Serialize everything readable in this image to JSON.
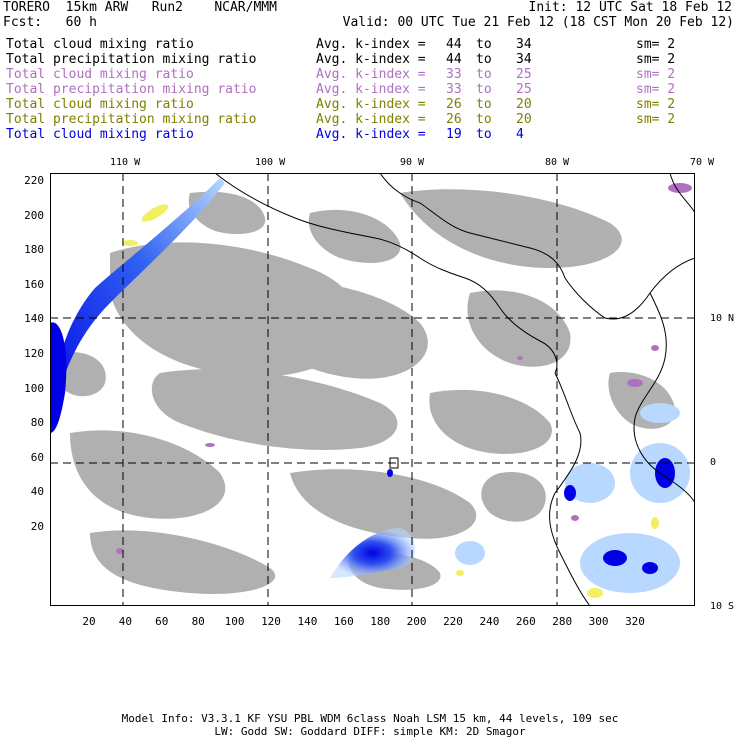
{
  "header": {
    "model": "TORERO  15km ARW   Run2    NCAR/MMM",
    "init": "Init: 12 UTC Sat 18 Feb 12",
    "fcst": "Fcst:   60 h",
    "valid": "Valid: 00 UTC Tue 21 Feb 12 (18 CST Mon 20 Feb 12)"
  },
  "legend": [
    {
      "field": "Total cloud mixing ratio",
      "index": "Avg. k-index =",
      "from": "44",
      "to_word": "to",
      "to": "34",
      "sm": "sm= 2",
      "color": "#000000"
    },
    {
      "field": "Total precipitation mixing ratio",
      "index": "Avg. k-index =",
      "from": "44",
      "to_word": "to",
      "to": "34",
      "sm": "sm= 2",
      "color": "#000000"
    },
    {
      "field": "Total cloud mixing ratio",
      "index": "Avg. k-index =",
      "from": "33",
      "to_word": "to",
      "to": "25",
      "sm": "sm= 2",
      "color": "#b070c0"
    },
    {
      "field": "Total precipitation mixing ratio",
      "index": "Avg. k-index =",
      "from": "33",
      "to_word": "to",
      "to": "25",
      "sm": "sm= 2",
      "color": "#b070c0"
    },
    {
      "field": "Total cloud mixing ratio",
      "index": "Avg. k-index =",
      "from": "26",
      "to_word": "to",
      "to": "20",
      "sm": "sm= 2",
      "color": "#808000"
    },
    {
      "field": "Total precipitation mixing ratio",
      "index": "Avg. k-index =",
      "from": "26",
      "to_word": "to",
      "to": "20",
      "sm": "sm= 2",
      "color": "#808000"
    },
    {
      "field": "Total cloud mixing ratio",
      "index": "Avg. k-index =",
      "from": "19",
      "to_word": "to",
      "to": "4",
      "sm": "",
      "color": "#0000e0"
    }
  ],
  "axes": {
    "lon_labels": [
      "110 W",
      "100 W",
      "90 W",
      "80 W",
      "70 W"
    ],
    "lat_labels": [
      "10 N",
      "0",
      "10 S"
    ],
    "y_ticks": [
      "220",
      "200",
      "180",
      "160",
      "140",
      "120",
      "100",
      "80",
      "60",
      "40",
      "20"
    ],
    "x_ticks": [
      "20",
      "40",
      "60",
      "80",
      "100",
      "120",
      "140",
      "160",
      "180",
      "200",
      "220",
      "240",
      "260",
      "280",
      "300",
      "320"
    ]
  },
  "colors": {
    "cloud_gray": "#a8a8a8",
    "deep_blue": "#0000e6",
    "light_blue": "#b8d8ff",
    "purple": "#b070c0",
    "yellow": "#f0f060",
    "coast": "#000000"
  },
  "footer": {
    "line1": "Model Info: V3.3.1   KF     YSU PBL  WDM 6class  Noah LSM  15 km,   44 levels,  109 sec",
    "line2": "LW: Godd SW: Goddard DIFF: simple KM: 2D Smagor"
  }
}
